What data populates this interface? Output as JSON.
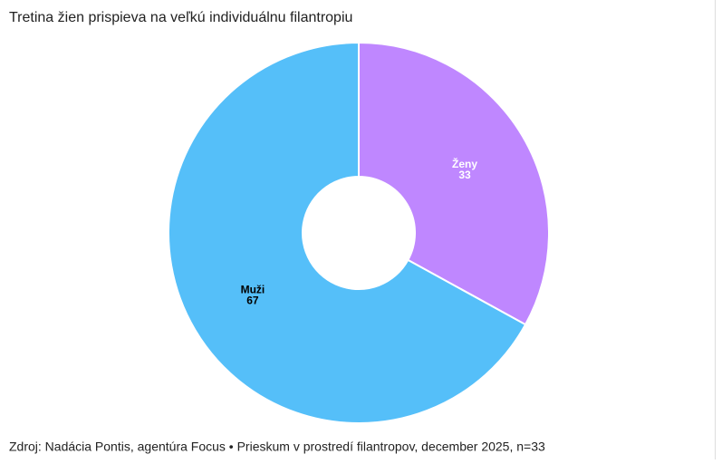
{
  "chart_data": {
    "type": "donut",
    "title": "Tretina žien prispieva na veľkú individuálnu filantropiu",
    "categories": [
      "Ženy",
      "Muži"
    ],
    "values": [
      33,
      67
    ],
    "colors": [
      "#bf87ff",
      "#55bff9"
    ],
    "label_colors": [
      "#ffffff",
      "#000000"
    ],
    "source": "Zdroj: Nadácia Pontis, agentúra Focus • Prieskum v prostredí filantropov, december 2025, n=33"
  }
}
